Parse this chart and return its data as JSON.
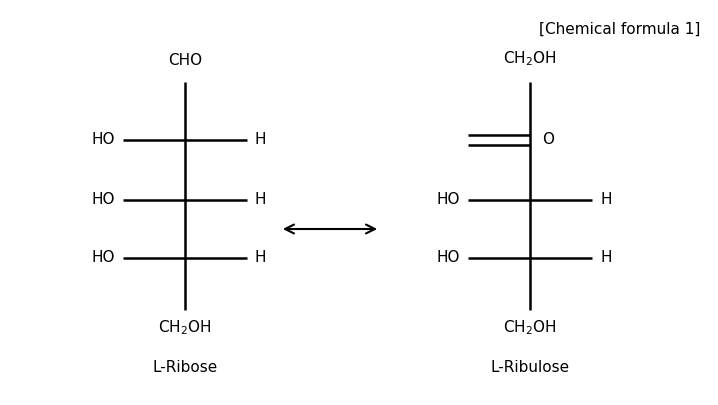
{
  "title": "[Chemical formula 1]",
  "background_color": "#ffffff",
  "text_color": "#000000",
  "lribose_label": "L-Ribose",
  "lribulose_label": "L-Ribulose",
  "font_size": 11,
  "font_size_title": 11,
  "line_width": 1.8
}
